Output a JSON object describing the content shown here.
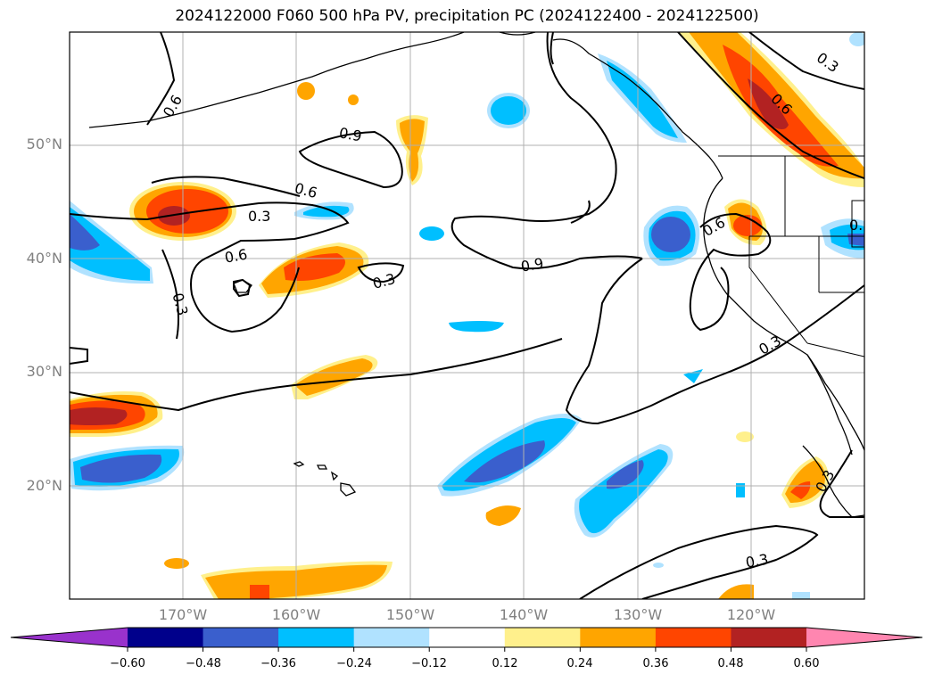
{
  "title": "2024122000 F060 500 hPa PV, precipitation PC (2024122400 - 2024122500)",
  "map": {
    "lat_labels": [
      "50°N",
      "40°N",
      "30°N",
      "20°N"
    ],
    "lon_labels": [
      "170°W",
      "160°W",
      "150°W",
      "140°W",
      "130°W",
      "120°W"
    ],
    "contour_labels": [
      "0.6",
      "0.9",
      "0.6",
      "0.3",
      "0.6",
      "0.3",
      "0.3",
      "0.9",
      "0.6",
      "0.6",
      "0.3",
      "0.3",
      "0.3",
      "0.3",
      "0.3",
      "0."
    ]
  },
  "colorbar": {
    "colors": [
      "#9932cc",
      "#00008b",
      "#3a5fcd",
      "#00bfff",
      "#b0e2ff",
      "#ffffff",
      "#fff08c",
      "#ffa500",
      "#ff4500",
      "#b22222",
      "#ff86b0"
    ],
    "labels": [
      "−0.60",
      "−0.48",
      "−0.36",
      "−0.24",
      "−0.12",
      "0.12",
      "0.24",
      "0.36",
      "0.48",
      "0.60"
    ]
  }
}
